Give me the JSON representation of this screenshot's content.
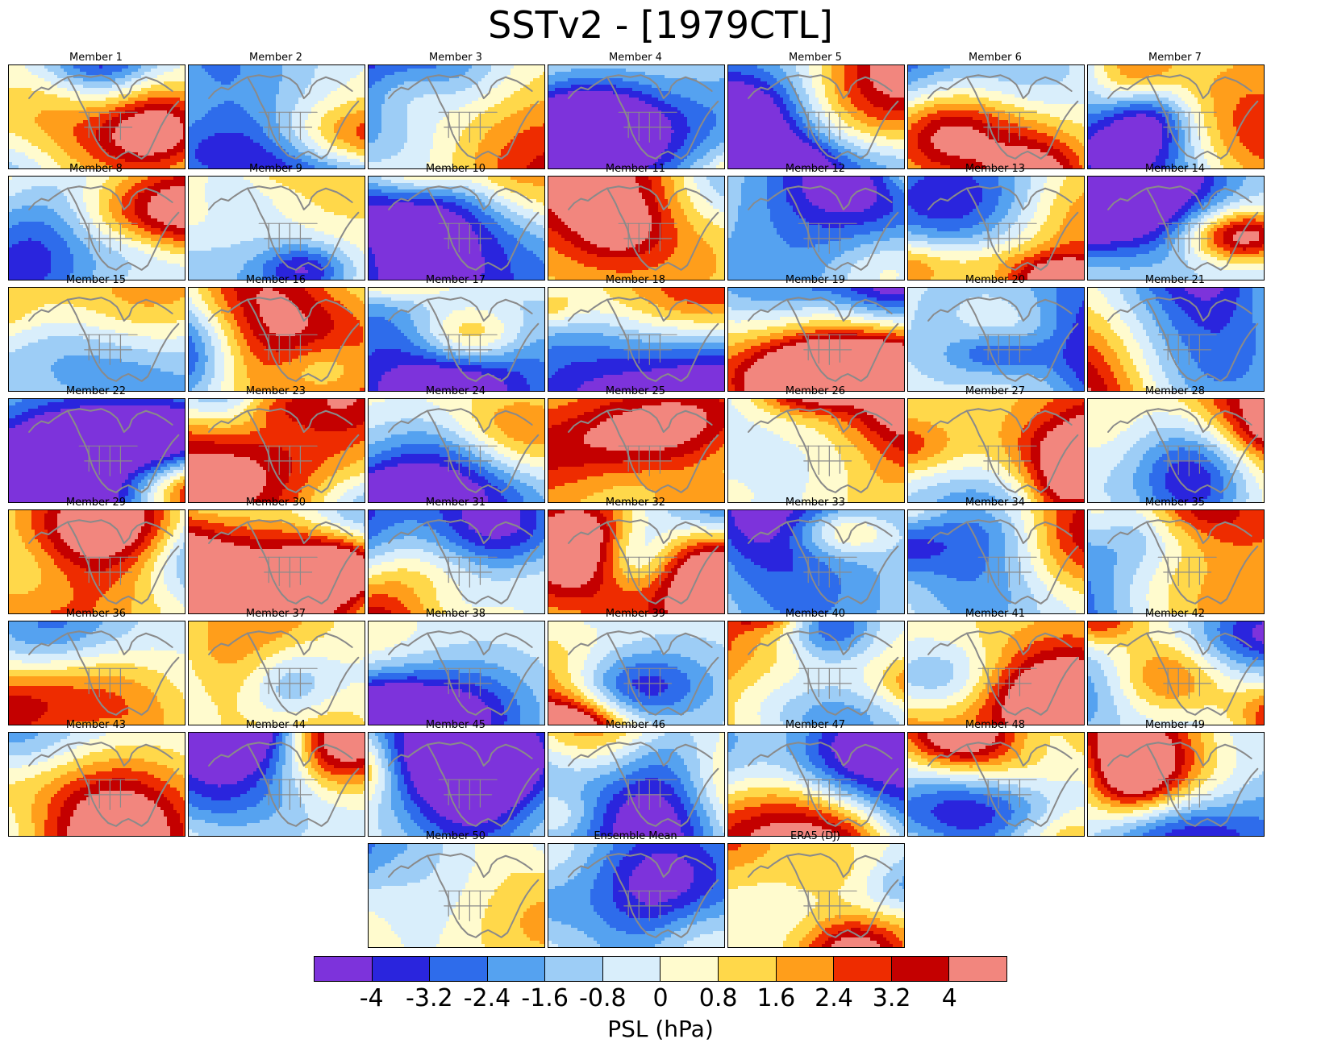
{
  "title": "SSTv2 - [1979CTL]",
  "colorbar": {
    "label": "PSL (hPa)",
    "ticks": [
      "-4",
      "-3.2",
      "-2.4",
      "-1.6",
      "-0.8",
      "0",
      "0.8",
      "1.6",
      "2.4",
      "3.2",
      "4"
    ],
    "palette": [
      "#7d33db",
      "#2a25dd",
      "#2e6ceb",
      "#55a2f0",
      "#9dcdf6",
      "#d9eefb",
      "#fffbce",
      "#ffd84a",
      "#ff9e1b",
      "#ee2c00",
      "#c40000",
      "#f2867e"
    ],
    "outline_color": "#000000"
  },
  "map_outline_color": "#8a8a8a",
  "chart_data": {
    "type": "heatmap",
    "title": "SSTv2 - [1979CTL]",
    "variable": "PSL",
    "units": "hPa",
    "region": "North Pacific and North America map panels",
    "layout": {
      "columns": 7,
      "rows": 8,
      "last_row_panels": 3,
      "colorbar_position": "bottom"
    },
    "levels": [
      -4,
      -3.2,
      -2.4,
      -1.6,
      -0.8,
      0,
      0.8,
      1.6,
      2.4,
      3.2,
      4
    ],
    "colorbar_label": "PSL (hPa)",
    "panels": [
      "Member 1",
      "Member 2",
      "Member 3",
      "Member 4",
      "Member 5",
      "Member 6",
      "Member 7",
      "Member 8",
      "Member 9",
      "Member 10",
      "Member 11",
      "Member 12",
      "Member 13",
      "Member 14",
      "Member 15",
      "Member 16",
      "Member 17",
      "Member 18",
      "Member 19",
      "Member 20",
      "Member 21",
      "Member 22",
      "Member 23",
      "Member 24",
      "Member 25",
      "Member 26",
      "Member 27",
      "Member 28",
      "Member 29",
      "Member 30",
      "Member 31",
      "Member 32",
      "Member 33",
      "Member 34",
      "Member 35",
      "Member 36",
      "Member 37",
      "Member 38",
      "Member 39",
      "Member 40",
      "Member 41",
      "Member 42",
      "Member 43",
      "Member 44",
      "Member 45",
      "Member 46",
      "Member 47",
      "Member 48",
      "Member 49",
      "Member 50",
      "Ensemble Mean",
      "ERA5 (DJ)"
    ]
  }
}
